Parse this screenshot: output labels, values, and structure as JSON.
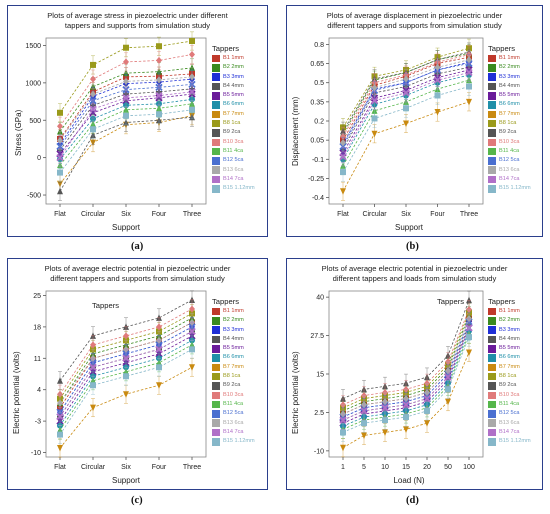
{
  "legend_items": [
    {
      "label": "B1 1mm",
      "color": "#c0392b"
    },
    {
      "label": "B2 2mm",
      "color": "#3a8a1f"
    },
    {
      "label": "B3 3mm",
      "color": "#1f2fd6"
    },
    {
      "label": "B4 4mm",
      "color": "#555555"
    },
    {
      "label": "B5 5mm",
      "color": "#6a1b9a"
    },
    {
      "label": "B6 6mm",
      "color": "#1f8fa8"
    },
    {
      "label": "B7 7mm",
      "color": "#c98a10"
    },
    {
      "label": "B8 1ca",
      "color": "#9a9a1a"
    },
    {
      "label": "B9 2ca",
      "color": "#555555"
    },
    {
      "label": "B10 3ca",
      "color": "#e07a7a"
    },
    {
      "label": "B11 4ca",
      "color": "#55b64a"
    },
    {
      "label": "B12 5ca",
      "color": "#4a6fd0"
    },
    {
      "label": "B13 6ca",
      "color": "#a9a9a9"
    },
    {
      "label": "B14 7ca",
      "color": "#b070c8"
    },
    {
      "label": "B15 1.12mm",
      "color": "#86b7c9"
    }
  ],
  "chart_data": [
    {
      "type": "line",
      "title": "Plots of average stress in piezoelectric under different\ntappers and supports from simulation study",
      "xlabel": "Support",
      "ylabel": "Stress (GPa)",
      "legend_title": "Tappers",
      "caption": "(a)",
      "categories": [
        "Flat",
        "Circular",
        "Six",
        "Four",
        "Three"
      ],
      "yticks": [
        "-500",
        "0",
        "500",
        "1000",
        "1500"
      ],
      "ytick_values": [
        -500,
        0,
        500,
        1000,
        1500
      ],
      "ylim": [
        -620,
        1600
      ],
      "series": [
        {
          "values": [
            250,
            880,
            1080,
            1090,
            1120
          ]
        },
        {
          "values": [
            350,
            950,
            1130,
            1150,
            1200
          ]
        },
        {
          "values": [
            180,
            820,
            990,
            1010,
            1050
          ]
        },
        {
          "values": [
            100,
            700,
            850,
            880,
            920
          ]
        },
        {
          "values": [
            50,
            600,
            760,
            800,
            850
          ]
        },
        {
          "values": [
            -20,
            520,
            700,
            720,
            780
          ]
        },
        {
          "values": [
            -350,
            200,
            440,
            470,
            560
          ]
        },
        {
          "values": [
            600,
            1240,
            1470,
            1490,
            1560
          ]
        },
        {
          "values": [
            -450,
            300,
            470,
            500,
            540
          ]
        },
        {
          "values": [
            420,
            1050,
            1280,
            1300,
            1380
          ]
        },
        {
          "values": [
            -100,
            450,
            640,
            660,
            720
          ]
        },
        {
          "values": [
            150,
            760,
            910,
            940,
            980
          ]
        },
        {
          "values": [
            230,
            850,
            1020,
            1040,
            1080
          ]
        },
        {
          "values": [
            0,
            650,
            800,
            830,
            880
          ]
        },
        {
          "values": [
            -200,
            380,
            560,
            580,
            640
          ]
        }
      ]
    },
    {
      "type": "line",
      "title": "Plots of average displacement in piezoelectric under\ndifferent tappers and supports from simulation study",
      "xlabel": "Support",
      "ylabel": "Displacement (mm)",
      "legend_title": "Tappers",
      "caption": "(b)",
      "categories": [
        "Flat",
        "Circular",
        "Six",
        "Four",
        "Three"
      ],
      "yticks": [
        "-0.4",
        "-0.25",
        "-0.1",
        "0.05",
        "0.2",
        "0.35",
        "0.5",
        "0.65",
        "0.8"
      ],
      "ytick_values": [
        -0.4,
        -0.25,
        -0.1,
        0.05,
        0.2,
        0.35,
        0.5,
        0.65,
        0.8
      ],
      "ylim": [
        -0.45,
        0.85
      ],
      "series": [
        {
          "values": [
            0.05,
            0.48,
            0.55,
            0.65,
            0.7
          ]
        },
        {
          "values": [
            0.1,
            0.52,
            0.58,
            0.68,
            0.73
          ]
        },
        {
          "values": [
            0.02,
            0.45,
            0.5,
            0.6,
            0.66
          ]
        },
        {
          "values": [
            -0.02,
            0.42,
            0.47,
            0.57,
            0.62
          ]
        },
        {
          "values": [
            -0.05,
            0.38,
            0.44,
            0.54,
            0.6
          ]
        },
        {
          "values": [
            -0.1,
            0.33,
            0.4,
            0.5,
            0.56
          ]
        },
        {
          "values": [
            -0.35,
            0.1,
            0.18,
            0.27,
            0.35
          ]
        },
        {
          "values": [
            0.15,
            0.55,
            0.6,
            0.7,
            0.77
          ]
        },
        {
          "values": [
            0.12,
            0.53,
            0.58,
            0.68,
            0.74
          ]
        },
        {
          "values": [
            0.08,
            0.5,
            0.56,
            0.66,
            0.72
          ]
        },
        {
          "values": [
            -0.15,
            0.28,
            0.35,
            0.45,
            0.52
          ]
        },
        {
          "values": [
            0.0,
            0.44,
            0.5,
            0.6,
            0.65
          ]
        },
        {
          "values": [
            0.03,
            0.46,
            0.53,
            0.62,
            0.68
          ]
        },
        {
          "values": [
            -0.08,
            0.36,
            0.42,
            0.52,
            0.58
          ]
        },
        {
          "values": [
            -0.2,
            0.22,
            0.3,
            0.4,
            0.47
          ]
        }
      ]
    },
    {
      "type": "line",
      "title": "Plots of average electric potential in piezoelectric under\ndifferent tappers and supports from simulation study",
      "xlabel": "Support",
      "ylabel": "Electric potential (volts)",
      "legend_title": "Tappers",
      "caption": "(c)",
      "plot_tag": "Tappers",
      "categories": [
        "Flat",
        "Circular",
        "Six",
        "Four",
        "Three"
      ],
      "yticks": [
        "-10",
        "-3",
        "4",
        "11",
        "18",
        "25"
      ],
      "ytick_values": [
        -10,
        -3,
        4,
        11,
        18,
        25
      ],
      "ylim": [
        -11,
        26
      ],
      "series": [
        {
          "values": [
            0,
            11,
            13,
            15,
            19
          ]
        },
        {
          "values": [
            1,
            12,
            14,
            16,
            20
          ]
        },
        {
          "values": [
            -1,
            10,
            12,
            14,
            18
          ]
        },
        {
          "values": [
            -2,
            9,
            11,
            13,
            17
          ]
        },
        {
          "values": [
            -3,
            8,
            10,
            12,
            16
          ]
        },
        {
          "values": [
            -4,
            7,
            9,
            11,
            15
          ]
        },
        {
          "values": [
            -9,
            0,
            3,
            5,
            9
          ]
        },
        {
          "values": [
            2,
            13,
            15,
            17,
            21
          ]
        },
        {
          "values": [
            6,
            16,
            18,
            20,
            24
          ]
        },
        {
          "values": [
            3,
            14,
            16,
            18,
            22
          ]
        },
        {
          "values": [
            -5,
            6,
            8,
            10,
            14
          ]
        },
        {
          "values": [
            -1,
            10,
            12,
            14,
            18
          ]
        },
        {
          "values": [
            1,
            11,
            13,
            15,
            19
          ]
        },
        {
          "values": [
            -2,
            9,
            11,
            13,
            17
          ]
        },
        {
          "values": [
            -6,
            5,
            7,
            9,
            13
          ]
        }
      ]
    },
    {
      "type": "line",
      "title": "Plots of average electric potential in piezoelectric under\ndifferent tappers and loads from simulation study",
      "xlabel": "Load (N)",
      "ylabel": "Electric potential (volts)",
      "legend_title": "Tappers",
      "caption": "(d)",
      "plot_tag": "Tappers",
      "categories": [
        "1",
        "5",
        "10",
        "15",
        "20",
        "50",
        "100"
      ],
      "yticks": [
        "-10",
        "2.5",
        "15",
        "27.5",
        "40"
      ],
      "ytick_values": [
        -10,
        2.5,
        15,
        27.5,
        40
      ],
      "ylim": [
        -12,
        42
      ],
      "series": [
        {
          "values": [
            2,
            5,
            6,
            7,
            9,
            16,
            33
          ]
        },
        {
          "values": [
            3,
            6,
            7,
            8,
            10,
            17,
            34
          ]
        },
        {
          "values": [
            1,
            4,
            5,
            6,
            8,
            15,
            32
          ]
        },
        {
          "values": [
            0,
            3,
            4,
            5,
            7,
            14,
            31
          ]
        },
        {
          "values": [
            -1,
            2,
            3,
            4,
            6,
            13,
            30
          ]
        },
        {
          "values": [
            -2,
            1,
            2,
            3,
            5,
            12,
            29
          ]
        },
        {
          "values": [
            -9,
            -5,
            -4,
            -3,
            -1,
            6,
            22
          ]
        },
        {
          "values": [
            4,
            7,
            8,
            9,
            11,
            18,
            35
          ]
        },
        {
          "values": [
            7,
            10,
            11,
            12,
            14,
            21,
            39
          ]
        },
        {
          "values": [
            5,
            8,
            9,
            10,
            12,
            19,
            36
          ]
        },
        {
          "values": [
            -3,
            0,
            1,
            2,
            4,
            11,
            28
          ]
        },
        {
          "values": [
            1,
            4,
            5,
            6,
            8,
            15,
            32
          ]
        },
        {
          "values": [
            2,
            5,
            6,
            7,
            9,
            16,
            33
          ]
        },
        {
          "values": [
            0,
            3,
            4,
            5,
            7,
            14,
            30
          ]
        },
        {
          "values": [
            -4,
            -1,
            0,
            1,
            3,
            10,
            27
          ]
        }
      ]
    }
  ]
}
